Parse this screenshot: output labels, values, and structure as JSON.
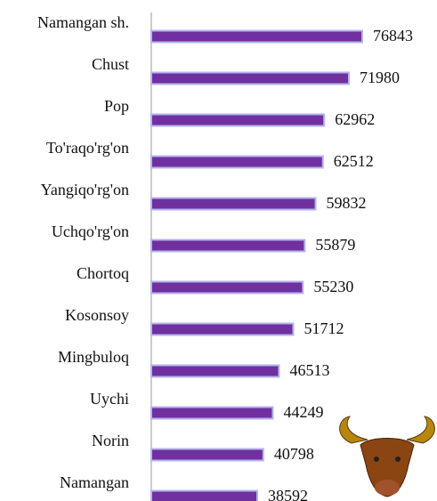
{
  "chart_data": {
    "type": "bar",
    "orientation": "horizontal",
    "categories": [
      "Namangan sh.",
      "Chust",
      "Pop",
      "To'raqo'rg'on",
      "Yangiqo'rg'on",
      "Uchqo'rg'on",
      "Chortoq",
      "Kosonsoy",
      "Mingbuloq",
      "Uychi",
      "Norin",
      "Namangan"
    ],
    "values": [
      76843,
      71980,
      62962,
      62512,
      59832,
      55879,
      55230,
      51712,
      46513,
      44249,
      40798,
      38592
    ],
    "color": "#7030a0"
  }
}
